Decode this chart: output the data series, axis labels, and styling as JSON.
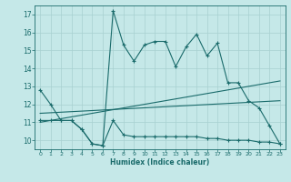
{
  "xlabel": "Humidex (Indice chaleur)",
  "xlim": [
    -0.5,
    23.5
  ],
  "ylim": [
    9.5,
    17.5
  ],
  "yticks": [
    10,
    11,
    12,
    13,
    14,
    15,
    16,
    17
  ],
  "xticks": [
    0,
    1,
    2,
    3,
    4,
    5,
    6,
    7,
    8,
    9,
    10,
    11,
    12,
    13,
    14,
    15,
    16,
    17,
    18,
    19,
    20,
    21,
    22,
    23
  ],
  "bg_color": "#c5e8e8",
  "line_color": "#1a6b6b",
  "grid_color": "#a8d0d0",
  "curve_main_x": [
    0,
    1,
    2,
    3,
    4,
    5,
    6,
    7,
    8,
    9,
    10,
    11,
    12,
    13,
    14,
    15,
    16,
    17,
    18,
    19,
    20,
    21,
    22,
    23
  ],
  "curve_main_y": [
    12.8,
    12.0,
    11.1,
    11.1,
    10.6,
    9.8,
    9.7,
    17.2,
    15.3,
    14.4,
    15.3,
    15.5,
    15.5,
    14.1,
    15.2,
    15.9,
    14.7,
    15.4,
    13.2,
    13.2,
    12.2,
    11.8,
    10.8,
    9.8
  ],
  "curve_lower_x": [
    0,
    1,
    2,
    3,
    4,
    5,
    6,
    7,
    8,
    9,
    10,
    11,
    12,
    13,
    14,
    15,
    16,
    17,
    18,
    19,
    20,
    21,
    22,
    23
  ],
  "curve_lower_y": [
    11.1,
    11.1,
    11.1,
    11.1,
    10.6,
    9.8,
    9.7,
    11.1,
    10.3,
    10.2,
    10.2,
    10.2,
    10.2,
    10.2,
    10.2,
    10.2,
    10.1,
    10.1,
    10.0,
    10.0,
    10.0,
    9.9,
    9.9,
    9.8
  ],
  "trend1_x": [
    0,
    23
  ],
  "trend1_y": [
    11.0,
    13.3
  ],
  "trend2_x": [
    0,
    23
  ],
  "trend2_y": [
    11.5,
    12.2
  ]
}
